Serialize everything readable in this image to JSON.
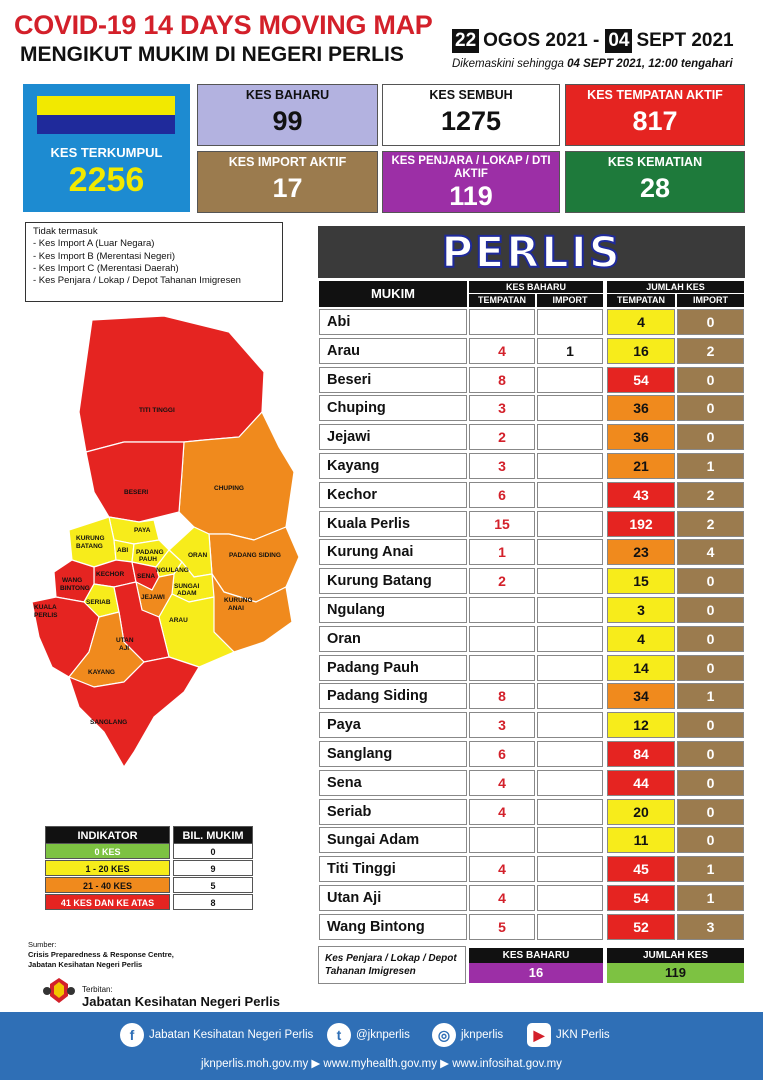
{
  "header": {
    "title": "COVID-19 14 DAYS MOVING MAP",
    "subtitle": "MENGIKUT MUKIM DI NEGERI PERLIS",
    "date_start_day": "22",
    "date_start_rest": "OGOS 2021 -",
    "date_end_day": "04",
    "date_end_rest": "SEPT 2021",
    "updated_prefix": "Dikemaskini sehingga",
    "updated_value": "04 SEPT  2021, 12:00 tengahari"
  },
  "stats": {
    "kes_terkumpul": {
      "label": "KES TERKUMPUL",
      "value": "2256"
    },
    "kes_baharu": {
      "label": "KES BAHARU",
      "value": "99",
      "color": "#b3b2e0"
    },
    "kes_sembuh": {
      "label": "KES SEMBUH",
      "value": "1275",
      "color": "#ffffff"
    },
    "kes_tempatan_aktif": {
      "label": "KES TEMPATAN AKTIF",
      "value": "817",
      "color": "#e52421"
    },
    "kes_import_aktif": {
      "label": "KES IMPORT AKTIF",
      "value": "17",
      "color": "#9b7b4e"
    },
    "kes_penjara": {
      "label": "KES PENJARA / LOKAP / DTI AKTIF",
      "value": "119",
      "color": "#9c2fa6"
    },
    "kes_kematian": {
      "label": "KES KEMATIAN",
      "value": "28",
      "color": "#1e7a3b"
    }
  },
  "notes": {
    "heading": "Tidak termasuk",
    "items": [
      "- Kes Import A (Luar Negara)",
      "- Kes Import B (Merentasi Negeri)",
      "- Kes Import C (Merentasi Daerah)",
      "- Kes Penjara / Lokap / Depot Tahanan Imigresen"
    ]
  },
  "map_labels": {
    "titi_tinggi": "TITI TINGGI",
    "beseri": "BESERI",
    "chuping": "CHUPING",
    "paya": "PAYA",
    "kurung_batang_1": "KURUNG",
    "kurung_batang_2": "BATANG",
    "abi": "ABI",
    "padang_pauh_1": "PADANG",
    "padang_pauh_2": "PAUH",
    "oran": "ORAN",
    "padang_siding": "PADANG SIDING",
    "ngulang": "NGULANG",
    "kechor": "KECHOR",
    "sena": "SENA",
    "sungai_adam_1": "SUNGAI",
    "sungai_adam_2": "ADAM",
    "wang_bintong_1": "WANG",
    "wang_bintong_2": "BINTONG",
    "jejawi": "JEJAWI",
    "kurung_anai_1": "KURUNG",
    "kurung_anai_2": "ANAI",
    "seriab": "SERIAB",
    "kuala_perlis_1": "KUALA",
    "kuala_perlis_2": "PERLIS",
    "arau": "ARAU",
    "utan_aji_1": "UTAN",
    "utan_aji_2": "AJI",
    "kayang": "KAYANG",
    "sanglang": "SANGLANG"
  },
  "indicator": {
    "header_left": "INDIKATOR",
    "header_right": "BIL. MUKIM",
    "rows": [
      {
        "label": "0 KES",
        "count": "0",
        "color": "#7dc242"
      },
      {
        "label": "1 - 20 KES",
        "count": "9",
        "color": "#f7ec1b"
      },
      {
        "label": "21 - 40 KES",
        "count": "5",
        "color": "#f08a1d"
      },
      {
        "label": "41 KES DAN KE ATAS",
        "count": "8",
        "color": "#e52421"
      }
    ]
  },
  "source": {
    "label": "Sumber:",
    "line1": "Crisis Preparedness & Response Centre,",
    "line2": "Jabatan Kesihatan Negeri Perlis",
    "publisher_label": "Terbitan:",
    "publisher_name": "Jabatan Kesihatan Negeri Perlis"
  },
  "table": {
    "state": "PERLIS",
    "col_mukim": "MUKIM",
    "group_baharu": "KES BAHARU",
    "group_jumlah": "JUMLAH KES",
    "sub_tempatan": "TEMPATAN",
    "sub_import": "IMPORT",
    "rows": [
      {
        "mukim": "Abi",
        "tb": "",
        "ib": "",
        "tj": "4",
        "ij": "0",
        "c": "#f7ec1b"
      },
      {
        "mukim": "Arau",
        "tb": "4",
        "ib": "1",
        "tj": "16",
        "ij": "2",
        "c": "#f7ec1b"
      },
      {
        "mukim": "Beseri",
        "tb": "8",
        "ib": "",
        "tj": "54",
        "ij": "0",
        "c": "#e52421"
      },
      {
        "mukim": "Chuping",
        "tb": "3",
        "ib": "",
        "tj": "36",
        "ij": "0",
        "c": "#f08a1d"
      },
      {
        "mukim": "Jejawi",
        "tb": "2",
        "ib": "",
        "tj": "36",
        "ij": "0",
        "c": "#f08a1d"
      },
      {
        "mukim": "Kayang",
        "tb": "3",
        "ib": "",
        "tj": "21",
        "ij": "1",
        "c": "#f08a1d"
      },
      {
        "mukim": "Kechor",
        "tb": "6",
        "ib": "",
        "tj": "43",
        "ij": "2",
        "c": "#e52421"
      },
      {
        "mukim": "Kuala Perlis",
        "tb": "15",
        "ib": "",
        "tj": "192",
        "ij": "2",
        "c": "#e52421"
      },
      {
        "mukim": "Kurung Anai",
        "tb": "1",
        "ib": "",
        "tj": "23",
        "ij": "4",
        "c": "#f08a1d"
      },
      {
        "mukim": "Kurung Batang",
        "tb": "2",
        "ib": "",
        "tj": "15",
        "ij": "0",
        "c": "#f7ec1b"
      },
      {
        "mukim": "Ngulang",
        "tb": "",
        "ib": "",
        "tj": "3",
        "ij": "0",
        "c": "#f7ec1b"
      },
      {
        "mukim": "Oran",
        "tb": "",
        "ib": "",
        "tj": "4",
        "ij": "0",
        "c": "#f7ec1b"
      },
      {
        "mukim": "Padang Pauh",
        "tb": "",
        "ib": "",
        "tj": "14",
        "ij": "0",
        "c": "#f7ec1b"
      },
      {
        "mukim": "Padang Siding",
        "tb": "8",
        "ib": "",
        "tj": "34",
        "ij": "1",
        "c": "#f08a1d"
      },
      {
        "mukim": "Paya",
        "tb": "3",
        "ib": "",
        "tj": "12",
        "ij": "0",
        "c": "#f7ec1b"
      },
      {
        "mukim": "Sanglang",
        "tb": "6",
        "ib": "",
        "tj": "84",
        "ij": "0",
        "c": "#e52421"
      },
      {
        "mukim": "Sena",
        "tb": "4",
        "ib": "",
        "tj": "44",
        "ij": "0",
        "c": "#e52421"
      },
      {
        "mukim": "Seriab",
        "tb": "4",
        "ib": "",
        "tj": "20",
        "ij": "0",
        "c": "#f7ec1b"
      },
      {
        "mukim": "Sungai Adam",
        "tb": "",
        "ib": "",
        "tj": "11",
        "ij": "0",
        "c": "#f7ec1b"
      },
      {
        "mukim": "Titi Tinggi",
        "tb": "4",
        "ib": "",
        "tj": "45",
        "ij": "1",
        "c": "#e52421"
      },
      {
        "mukim": "Utan Aji",
        "tb": "4",
        "ib": "",
        "tj": "54",
        "ij": "1",
        "c": "#e52421"
      },
      {
        "mukim": "Wang Bintong",
        "tb": "5",
        "ib": "",
        "tj": "52",
        "ij": "3",
        "c": "#e52421"
      }
    ],
    "penjara": {
      "label": "Kes Penjara / Lokap / Depot Tahanan Imigresen",
      "baharu_label": "KES BAHARU",
      "baharu_value": "16",
      "jumlah_label": "JUMLAH KES",
      "jumlah_value": "119"
    }
  },
  "footer": {
    "facebook": "Jabatan Kesihatan Negeri Perlis",
    "twitter": "@jknperlis",
    "instagram": "jknperlis",
    "youtube": "JKN Perlis",
    "links": "jknperlis.moh.gov.my  ▶ www.myhealth.gov.my  ▶ www.infosihat.gov.my",
    "icons": [
      "facebook-icon",
      "twitter-icon",
      "instagram-icon",
      "youtube-icon"
    ]
  }
}
